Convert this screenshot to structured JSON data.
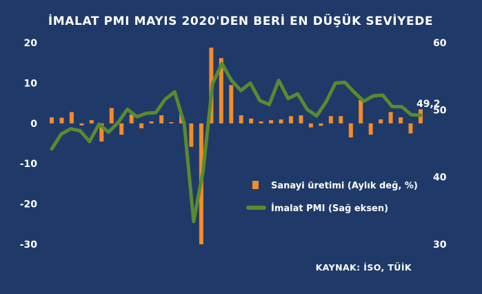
{
  "chart_data": {
    "type": "bar+line",
    "title": "İMALAT PMI MAYIS 2020'DEN BERİ EN DÜŞÜK SEVİYEDE",
    "y_left": {
      "ticks": [
        20,
        10,
        0,
        -10,
        -20,
        -30
      ],
      "ylim": [
        -30,
        20
      ]
    },
    "y_right": {
      "ticks": [
        60,
        50,
        40,
        30
      ],
      "ylim": [
        30,
        60
      ]
    },
    "series": [
      {
        "name": "Sanayi üretimi (Aylık değ, %)",
        "type": "bar",
        "color": "#f28c28",
        "values": [
          1.5,
          1.4,
          2.8,
          -0.5,
          0.8,
          -4.5,
          3.8,
          -2.8,
          2.2,
          -1.2,
          0.5,
          2.0,
          0.3,
          2.2,
          -5.8,
          -30.0,
          18.8,
          16.2,
          9.5,
          2.0,
          1.2,
          0.5,
          0.8,
          1.0,
          1.8,
          2.0,
          -1.0,
          -0.6,
          1.8,
          1.8,
          -3.5,
          5.8,
          -2.8,
          1.0,
          2.8,
          1.5,
          -2.5,
          3.5
        ]
      },
      {
        "name": "İmalat PMI (Sağ eksen)",
        "type": "line",
        "axis": "right",
        "color": "#5a8a2e",
        "values": [
          44.2,
          46.4,
          47.2,
          46.9,
          45.3,
          47.9,
          46.7,
          48.1,
          50.1,
          49.0,
          49.5,
          49.6,
          51.6,
          52.7,
          48.0,
          33.4,
          40.9,
          53.9,
          56.9,
          54.4,
          52.9,
          54.0,
          51.4,
          50.8,
          54.4,
          51.7,
          52.4,
          50.1,
          49.1,
          51.2,
          54.0,
          54.1,
          52.6,
          51.3,
          52.1,
          52.2,
          50.5,
          50.5,
          49.3,
          49.2
        ]
      }
    ],
    "annotations": {
      "last_value": "49,2"
    },
    "legend_position": "right-middle",
    "source": "KAYNAK: İSO, TÜİK",
    "grid": false
  }
}
